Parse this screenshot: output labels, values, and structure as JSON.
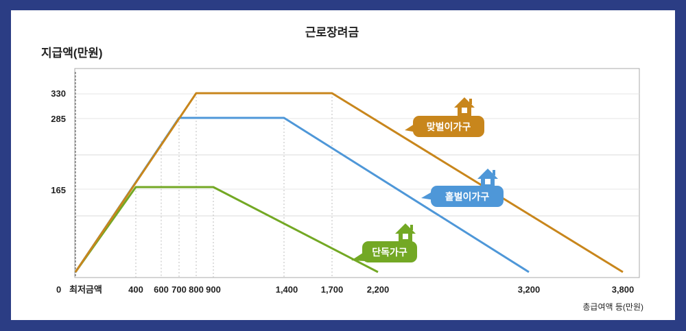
{
  "chart_data": {
    "type": "line",
    "title": "근로장려금",
    "ylabel": "지급액(만원)",
    "xlabel": "총급여액 등(만원)",
    "x_ticks": [
      "0",
      "최저금액",
      "400",
      "600",
      "700",
      "800",
      "900",
      "1,400",
      "1,700",
      "2,200",
      "3,200",
      "3,800"
    ],
    "y_ticks": [
      "330",
      "285",
      "165",
      "0"
    ],
    "ylim": [
      0,
      360
    ],
    "grid": true,
    "series": [
      {
        "name": "맞벌이가구",
        "color": "#c8861c",
        "points": [
          [
            0,
            0
          ],
          [
            800,
            330
          ],
          [
            1700,
            330
          ],
          [
            3800,
            0
          ]
        ]
      },
      {
        "name": "홑벌이가구",
        "color": "#4e97d8",
        "points": [
          [
            0,
            0
          ],
          [
            700,
            285
          ],
          [
            1400,
            285
          ],
          [
            3200,
            0
          ]
        ]
      },
      {
        "name": "단독가구",
        "color": "#73a824",
        "points": [
          [
            0,
            0
          ],
          [
            400,
            165
          ],
          [
            900,
            165
          ],
          [
            2200,
            0
          ]
        ]
      }
    ]
  }
}
